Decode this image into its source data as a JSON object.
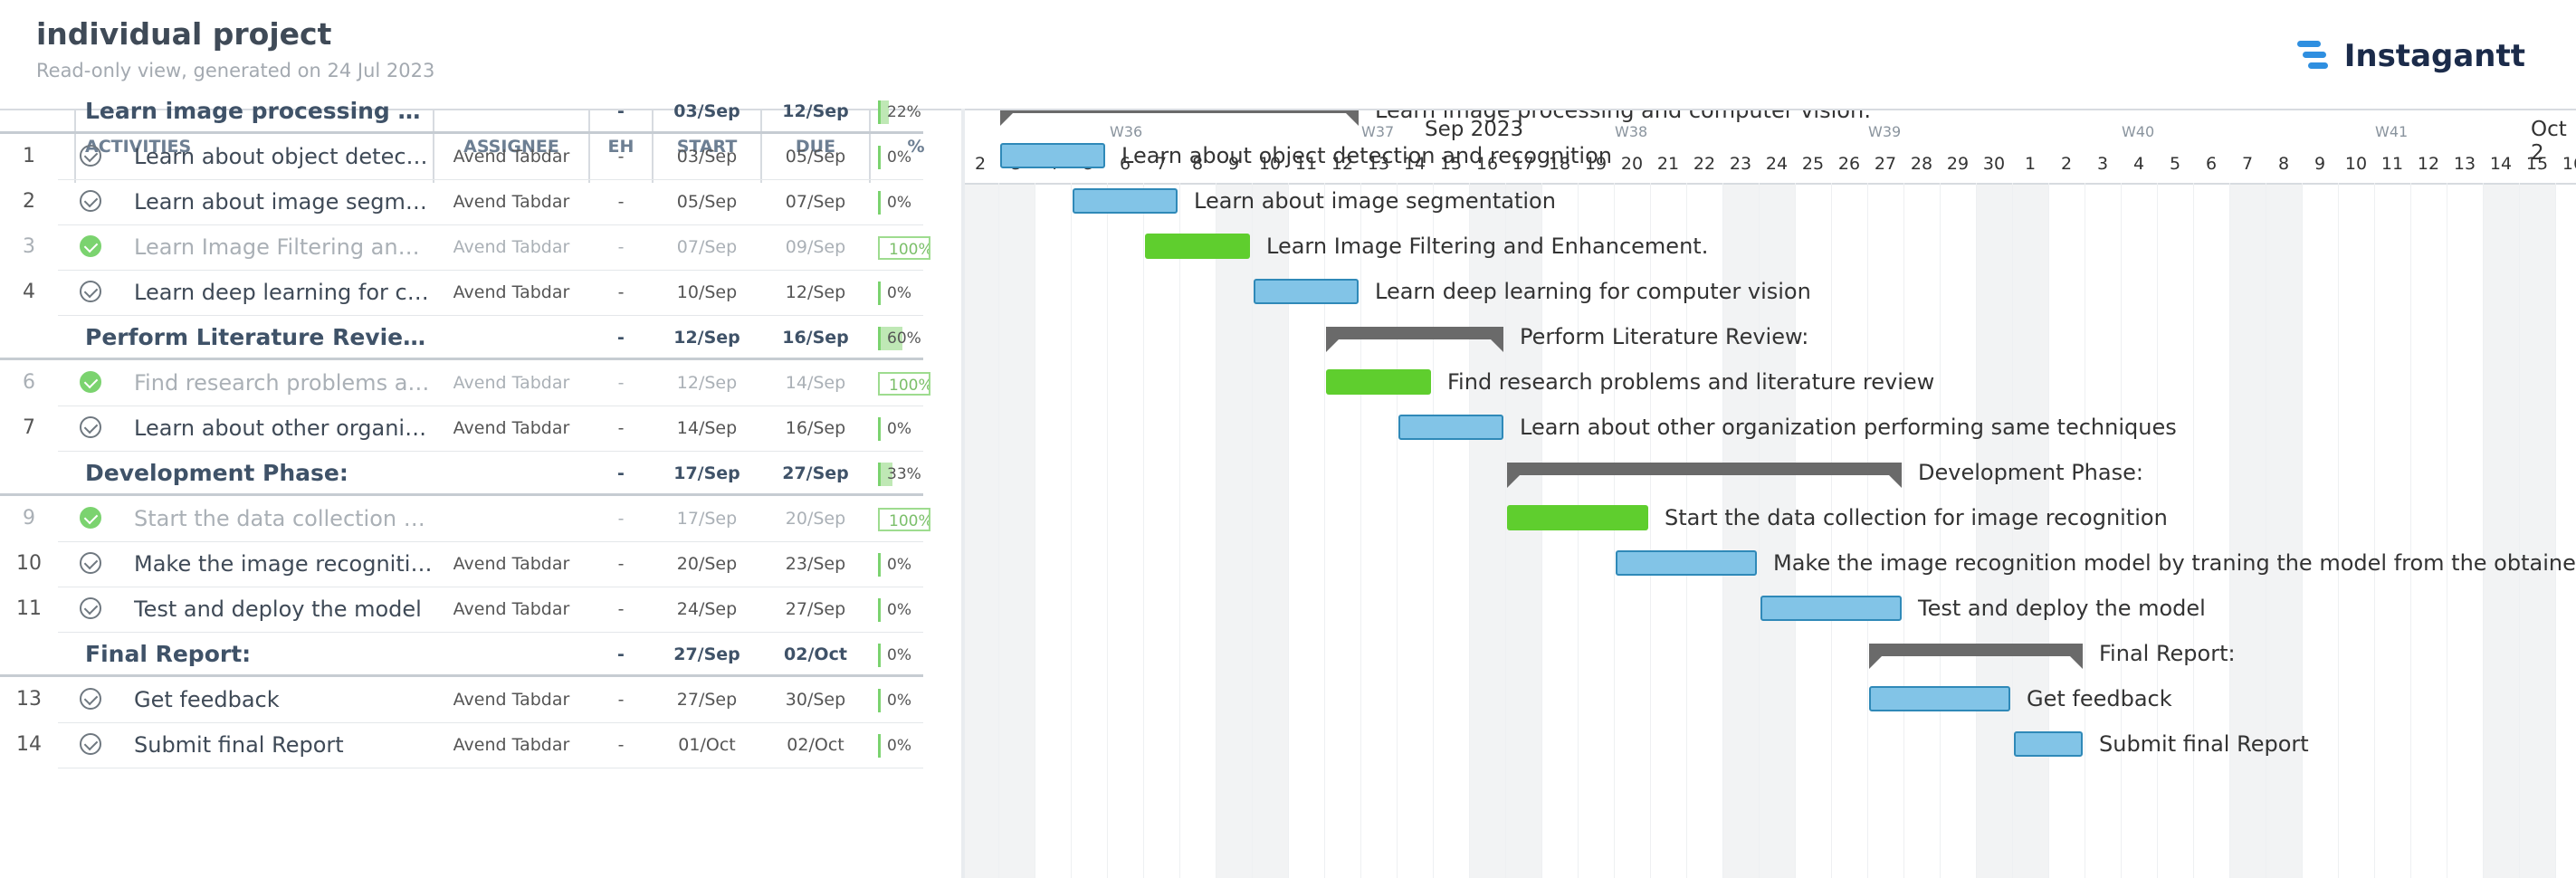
{
  "header": {
    "title": "individual project",
    "subtitle": "Read-only view, generated on 24 Jul 2023",
    "logo_text": "Instagantt"
  },
  "columns": {
    "activities": "ACTIVITIES",
    "assignee": "ASSIGNEE",
    "eh": "EH",
    "start": "START",
    "due": "DUE",
    "pct": "%"
  },
  "timeline": {
    "days": [
      "2",
      "3",
      "4",
      "5",
      "6",
      "7",
      "8",
      "9",
      "10",
      "11",
      "12",
      "13",
      "14",
      "15",
      "16",
      "17",
      "18",
      "19",
      "20",
      "21",
      "22",
      "23",
      "24",
      "25",
      "26",
      "27",
      "28",
      "29",
      "30",
      "1",
      "2",
      "3",
      "4",
      "5",
      "6",
      "7",
      "8",
      "9",
      "10",
      "11",
      "12",
      "13",
      "14",
      "15",
      "16"
    ],
    "weeks": [
      "W36",
      "W37",
      "W38",
      "W39",
      "W40",
      "W41"
    ],
    "months": [
      "Sep 2023",
      "Oct 2"
    ]
  },
  "rows": [
    {
      "type": "group",
      "name": "Learn image processing and co...",
      "eh": "-",
      "start": "03/Sep",
      "due": "12/Sep",
      "pct": "22%",
      "pct_value": 22,
      "bar_label": "Learn image processing and computer vision:"
    },
    {
      "type": "task",
      "num": "1",
      "name": "Learn about object detectio...",
      "assignee": "Avend Tabdar",
      "eh": "-",
      "start": "03/Sep",
      "due": "05/Sep",
      "pct": "0%",
      "pct_value": 0,
      "done": false,
      "bar_label": "Learn about object detection and recognition"
    },
    {
      "type": "task",
      "num": "2",
      "name": "Learn about image segmen...",
      "assignee": "Avend Tabdar",
      "eh": "-",
      "start": "05/Sep",
      "due": "07/Sep",
      "pct": "0%",
      "pct_value": 0,
      "done": false,
      "bar_label": "Learn about image segmentation"
    },
    {
      "type": "task",
      "num": "3",
      "name": "Learn Image Filtering and E...",
      "assignee": "Avend Tabdar",
      "eh": "-",
      "start": "07/Sep",
      "due": "09/Sep",
      "pct": "100%",
      "pct_value": 100,
      "done": true,
      "bar_label": "Learn Image Filtering and Enhancement."
    },
    {
      "type": "task",
      "num": "4",
      "name": "Learn deep learning for co...",
      "assignee": "Avend Tabdar",
      "eh": "-",
      "start": "10/Sep",
      "due": "12/Sep",
      "pct": "0%",
      "pct_value": 0,
      "done": false,
      "bar_label": "Learn deep learning for computer vision"
    },
    {
      "type": "group",
      "name": "Perform Literature Review:",
      "eh": "-",
      "start": "12/Sep",
      "due": "16/Sep",
      "pct": "60%",
      "pct_value": 60,
      "bar_label": "Perform Literature Review:"
    },
    {
      "type": "task",
      "num": "6",
      "name": "Find research problems and...",
      "assignee": "Avend Tabdar",
      "eh": "-",
      "start": "12/Sep",
      "due": "14/Sep",
      "pct": "100%",
      "pct_value": 100,
      "done": true,
      "bar_label": "Find research problems and literature review"
    },
    {
      "type": "task",
      "num": "7",
      "name": "Learn about other organizat...",
      "assignee": "Avend Tabdar",
      "eh": "-",
      "start": "14/Sep",
      "due": "16/Sep",
      "pct": "0%",
      "pct_value": 0,
      "done": false,
      "bar_label": "Learn about other organization performing same techniques"
    },
    {
      "type": "group",
      "name": "Development Phase:",
      "eh": "-",
      "start": "17/Sep",
      "due": "27/Sep",
      "pct": "33%",
      "pct_value": 33,
      "bar_label": "Development Phase:"
    },
    {
      "type": "task",
      "num": "9",
      "name": "Start the data collection for ...",
      "assignee": "",
      "eh": "-",
      "start": "17/Sep",
      "due": "20/Sep",
      "pct": "100%",
      "pct_value": 100,
      "done": true,
      "bar_label": "Start the data collection for image recognition"
    },
    {
      "type": "task",
      "num": "10",
      "name": "Make the image recognition...",
      "assignee": "Avend Tabdar",
      "eh": "-",
      "start": "20/Sep",
      "due": "23/Sep",
      "pct": "0%",
      "pct_value": 0,
      "done": false,
      "bar_label": "Make the image recognition model by traning the model from the obtained data"
    },
    {
      "type": "task",
      "num": "11",
      "name": "Test and deploy the model",
      "assignee": "Avend Tabdar",
      "eh": "-",
      "start": "24/Sep",
      "due": "27/Sep",
      "pct": "0%",
      "pct_value": 0,
      "done": false,
      "bar_label": "Test and deploy the model"
    },
    {
      "type": "group",
      "name": "Final Report:",
      "eh": "-",
      "start": "27/Sep",
      "due": "02/Oct",
      "pct": "0%",
      "pct_value": 0,
      "bar_label": "Final Report:"
    },
    {
      "type": "task",
      "num": "13",
      "name": "Get feedback",
      "assignee": "Avend Tabdar",
      "eh": "-",
      "start": "27/Sep",
      "due": "30/Sep",
      "pct": "0%",
      "pct_value": 0,
      "done": false,
      "bar_label": "Get feedback"
    },
    {
      "type": "task",
      "num": "14",
      "name": "Submit final Report",
      "assignee": "Avend Tabdar",
      "eh": "-",
      "start": "01/Oct",
      "due": "02/Oct",
      "pct": "0%",
      "pct_value": 0,
      "done": false,
      "bar_label": "Submit final Report"
    }
  ],
  "colors": {
    "task_bar": "#82c4e7",
    "done_bar": "#5fce2e",
    "group_bar": "#6a6a6a"
  }
}
